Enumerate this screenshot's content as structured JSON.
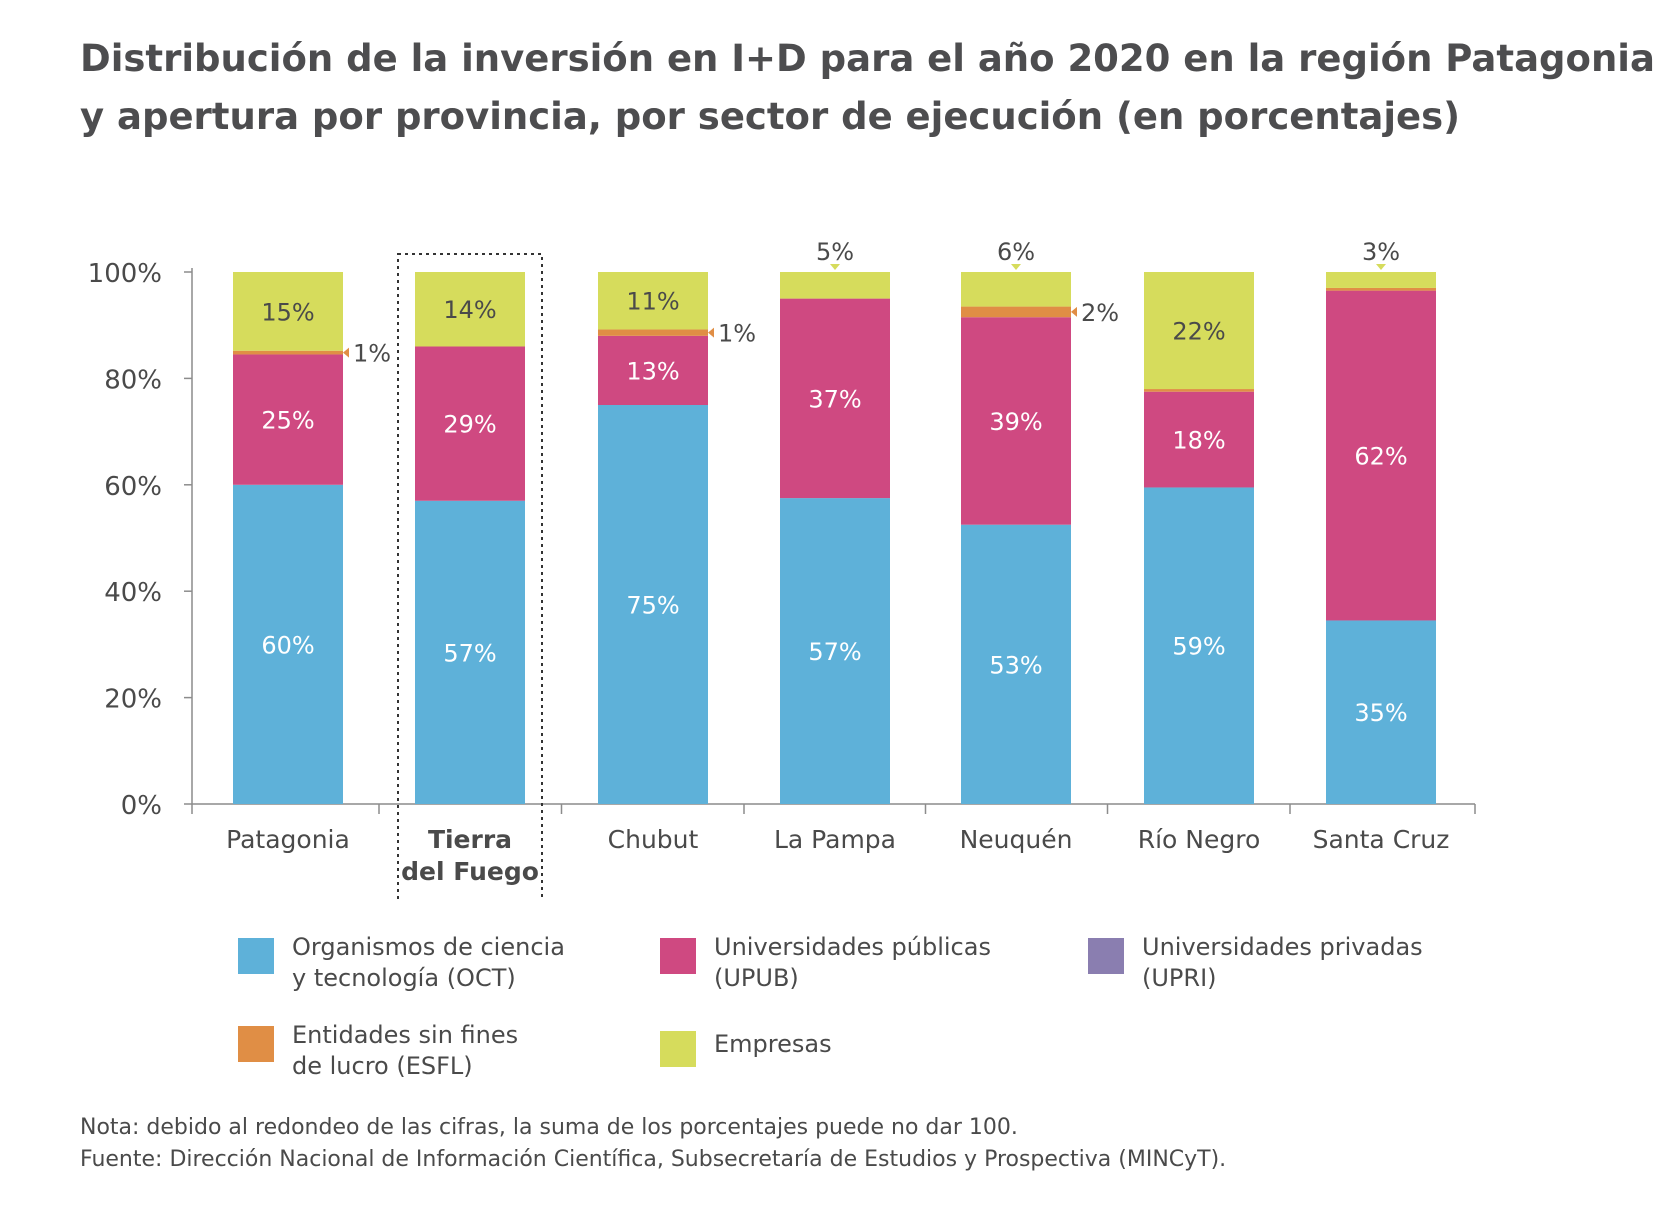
{
  "title": "Distribución de la inversión en I+D para el año 2020 en la región Patagonia y apertura por provincia, por sector de ejecución (en porcentajes)",
  "chart_data": {
    "type": "bar",
    "stacked": true,
    "ylim": [
      0,
      100
    ],
    "yticks": [
      "0%",
      "20%",
      "40%",
      "60%",
      "80%",
      "100%"
    ],
    "grid": false,
    "categories": [
      [
        "Patagonia"
      ],
      [
        "Tierra",
        "del Fuego"
      ],
      [
        "Chubut"
      ],
      [
        "La Pampa"
      ],
      [
        "Neuquén"
      ],
      [
        "Río Negro"
      ],
      [
        "Santa Cruz"
      ]
    ],
    "highlighted_category": 1,
    "series": [
      {
        "name": "Organismos de ciencia y tecnología (OCT)",
        "color": "#5eb1d9",
        "values": [
          60,
          57,
          75,
          57.5,
          52.5,
          59.5,
          34.5
        ],
        "labels": [
          "60%",
          "57%",
          "75%",
          "57%",
          "53%",
          "59%",
          "35%"
        ]
      },
      {
        "name": "Universidades públicas (UPUB)",
        "color": "#cf4981",
        "values": [
          24.5,
          29,
          13,
          37.5,
          39,
          18,
          62
        ],
        "labels": [
          "25%",
          "29%",
          "13%",
          "37%",
          "39%",
          "18%",
          "62%"
        ]
      },
      {
        "name": "Universidades privadas (UPRI)",
        "color": "#8a7eb0",
        "values": [
          0,
          0,
          0,
          0,
          0,
          0,
          0
        ],
        "labels": [
          "",
          "",
          "",
          "",
          "",
          "",
          ""
        ]
      },
      {
        "name": "Entidades sin fines de lucro (ESFL)",
        "color": "#e08e45",
        "values": [
          0.7,
          0,
          1.2,
          0,
          2,
          0.5,
          0.5
        ],
        "labels": [
          "1%",
          "",
          "1%",
          "",
          "2%",
          "",
          ""
        ]
      },
      {
        "name": "Empresas",
        "color": "#d6dc5c",
        "values": [
          14.8,
          14,
          10.8,
          5,
          6.5,
          22,
          3
        ],
        "labels": [
          "15%",
          "14%",
          "11%",
          "5%",
          "6%",
          "22%",
          "3%"
        ]
      }
    ]
  },
  "legend": {
    "oct": [
      "Organismos de ciencia",
      "y tecnología (OCT)"
    ],
    "upub": [
      "Universidades públicas",
      "(UPUB)"
    ],
    "upri": [
      "Universidades privadas",
      "(UPRI)"
    ],
    "esfl": [
      "Entidades sin fines",
      "de lucro (ESFL)"
    ],
    "empresas": [
      "Empresas"
    ]
  },
  "footnotes": {
    "nota": "Nota: debido al redondeo de las cifras, la suma de los porcentajes puede no dar 100.",
    "fuente": "Fuente: Dirección Nacional de Información Científica, Subsecretaría de Estudios y Prospectiva (MINCyT)."
  }
}
